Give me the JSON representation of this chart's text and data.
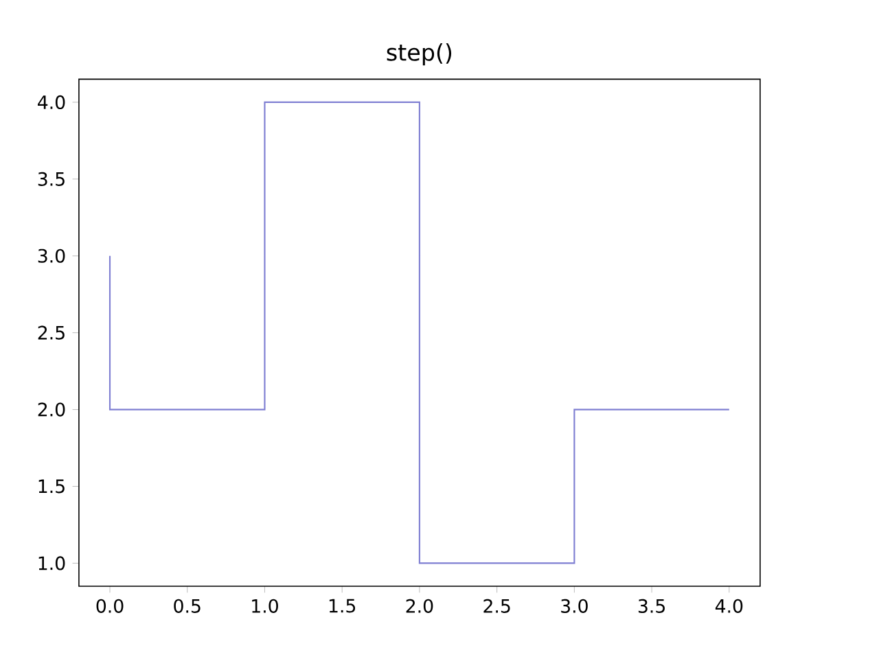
{
  "chart_data": {
    "type": "step",
    "title": "step()",
    "x": [
      0,
      1,
      2,
      3,
      4
    ],
    "values": [
      3,
      2,
      4,
      1,
      2
    ],
    "color": "#7f7fd2",
    "xlim": [
      -0.2,
      4.2
    ],
    "ylim": [
      0.85,
      4.15
    ],
    "xticks": [
      {
        "value": 0,
        "label": "0.0"
      },
      {
        "value": 0.5,
        "label": "0.5"
      },
      {
        "value": 1,
        "label": "1.0"
      },
      {
        "value": 1.5,
        "label": "1.5"
      },
      {
        "value": 2,
        "label": "2.0"
      },
      {
        "value": 2.5,
        "label": "2.5"
      },
      {
        "value": 3,
        "label": "3.0"
      },
      {
        "value": 3.5,
        "label": "3.5"
      },
      {
        "value": 4,
        "label": "4.0"
      }
    ],
    "yticks": [
      {
        "value": 1,
        "label": "1.0"
      },
      {
        "value": 1.5,
        "label": "1.5"
      },
      {
        "value": 2,
        "label": "2.0"
      },
      {
        "value": 2.5,
        "label": "2.5"
      },
      {
        "value": 3,
        "label": "3.0"
      },
      {
        "value": 3.5,
        "label": "3.5"
      },
      {
        "value": 4,
        "label": "4.0"
      }
    ]
  }
}
